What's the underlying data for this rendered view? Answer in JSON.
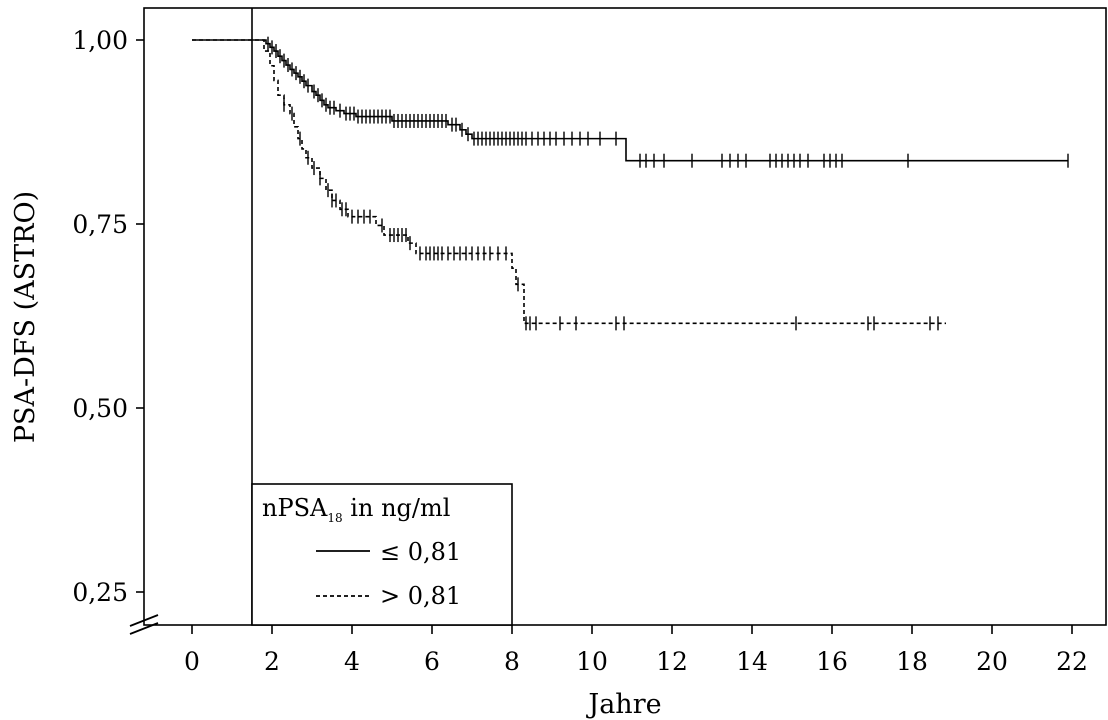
{
  "chart_data": {
    "type": "line",
    "subtype": "kaplan-meier",
    "title": "",
    "xlabel": "Jahre",
    "ylabel": "PSA-DFS (ASTRO)",
    "xlim": [
      -1.1,
      22.8
    ],
    "ylim": [
      0.22,
      1.04
    ],
    "y_axis_break": true,
    "xticks": [
      0,
      2,
      4,
      6,
      8,
      10,
      12,
      14,
      16,
      18,
      20,
      22
    ],
    "yticks": [
      1.0,
      0.75,
      0.5,
      0.25
    ],
    "ytick_labels": [
      "1,00",
      "0,75",
      "0,50",
      "0,25"
    ],
    "grid": false,
    "reference_line_x": 1.5,
    "legend": {
      "position": "bottom-left",
      "title_main": "nPSA",
      "title_sub": "18",
      "title_rest": " in ng/ml",
      "entries": [
        "≤ 0,81",
        "> 0,81"
      ]
    },
    "series": [
      {
        "name": "≤ 0,81",
        "line_style": "solid",
        "steps": [
          [
            0,
            1.0
          ],
          [
            1.85,
            0.995
          ],
          [
            1.95,
            0.99
          ],
          [
            2.05,
            0.985
          ],
          [
            2.15,
            0.978
          ],
          [
            2.25,
            0.972
          ],
          [
            2.35,
            0.966
          ],
          [
            2.45,
            0.96
          ],
          [
            2.55,
            0.955
          ],
          [
            2.65,
            0.95
          ],
          [
            2.75,
            0.944
          ],
          [
            2.85,
            0.938
          ],
          [
            3.0,
            0.93
          ],
          [
            3.1,
            0.925
          ],
          [
            3.2,
            0.918
          ],
          [
            3.3,
            0.912
          ],
          [
            3.4,
            0.908
          ],
          [
            3.6,
            0.904
          ],
          [
            3.8,
            0.9
          ],
          [
            4.1,
            0.896
          ],
          [
            5.0,
            0.89
          ],
          [
            6.4,
            0.885
          ],
          [
            6.7,
            0.878
          ],
          [
            6.85,
            0.872
          ],
          [
            7.0,
            0.866
          ],
          [
            10.85,
            0.836
          ]
        ],
        "end": 21.9,
        "censored": [
          1.9,
          2.0,
          2.1,
          2.2,
          2.3,
          2.4,
          2.5,
          2.6,
          2.7,
          2.8,
          2.9,
          3.05,
          3.15,
          3.25,
          3.35,
          3.45,
          3.55,
          3.7,
          3.85,
          3.95,
          4.05,
          4.15,
          4.25,
          4.35,
          4.45,
          4.55,
          4.65,
          4.75,
          4.85,
          4.95,
          5.05,
          5.15,
          5.25,
          5.35,
          5.45,
          5.55,
          5.65,
          5.75,
          5.85,
          5.95,
          6.05,
          6.15,
          6.25,
          6.35,
          6.5,
          6.6,
          6.75,
          6.9,
          7.05,
          7.15,
          7.25,
          7.35,
          7.45,
          7.55,
          7.65,
          7.75,
          7.85,
          7.95,
          8.05,
          8.15,
          8.25,
          8.35,
          8.5,
          8.65,
          8.8,
          8.95,
          9.1,
          9.3,
          9.5,
          9.7,
          9.9,
          10.2,
          10.6,
          11.2,
          11.35,
          11.55,
          11.8,
          12.5,
          13.25,
          13.45,
          13.65,
          13.85,
          14.45,
          14.6,
          14.75,
          14.9,
          15.05,
          15.2,
          15.4,
          15.8,
          15.95,
          16.1,
          16.25,
          17.9,
          21.9
        ]
      },
      {
        "name": "> 0,81",
        "line_style": "dashed",
        "steps": [
          [
            0,
            1.0
          ],
          [
            1.8,
            0.985
          ],
          [
            1.95,
            0.965
          ],
          [
            2.05,
            0.945
          ],
          [
            2.15,
            0.925
          ],
          [
            2.3,
            0.912
          ],
          [
            2.45,
            0.9
          ],
          [
            2.55,
            0.882
          ],
          [
            2.65,
            0.866
          ],
          [
            2.75,
            0.852
          ],
          [
            2.85,
            0.84
          ],
          [
            3.0,
            0.826
          ],
          [
            3.2,
            0.812
          ],
          [
            3.35,
            0.796
          ],
          [
            3.5,
            0.782
          ],
          [
            3.7,
            0.77
          ],
          [
            3.9,
            0.76
          ],
          [
            4.6,
            0.748
          ],
          [
            4.8,
            0.735
          ],
          [
            5.4,
            0.724
          ],
          [
            5.6,
            0.71
          ],
          [
            8.0,
            0.69
          ],
          [
            8.1,
            0.668
          ],
          [
            8.3,
            0.615
          ]
        ],
        "end": 18.85,
        "censored": [
          2.3,
          2.5,
          2.7,
          2.9,
          3.05,
          3.2,
          3.4,
          3.5,
          3.6,
          3.75,
          3.85,
          4.0,
          4.15,
          4.3,
          4.45,
          4.75,
          4.95,
          5.05,
          5.15,
          5.25,
          5.35,
          5.45,
          5.7,
          5.85,
          5.95,
          6.05,
          6.15,
          6.25,
          6.4,
          6.55,
          6.7,
          6.85,
          7.0,
          7.15,
          7.3,
          7.45,
          7.65,
          7.85,
          8.15,
          8.35,
          8.45,
          8.6,
          9.2,
          9.6,
          10.6,
          10.8,
          15.1,
          16.9,
          17.05,
          18.45,
          18.65
        ]
      }
    ]
  }
}
